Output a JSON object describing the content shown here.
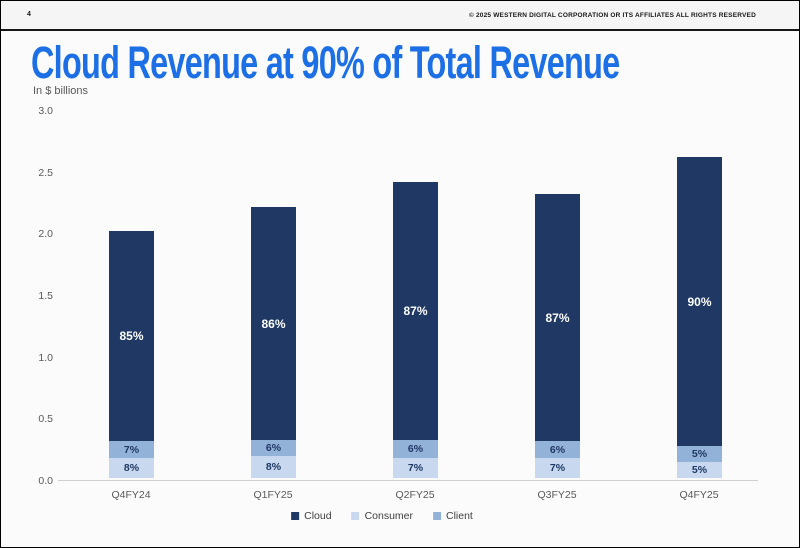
{
  "header": {
    "page_number": "4",
    "copyright": "© 2025 WESTERN DIGITAL CORPORATION OR ITS AFFILIATES  ALL RIGHTS RESERVED"
  },
  "title": "Cloud Revenue at 90% of Total Revenue",
  "subtitle": "In $ billions",
  "colors": {
    "title_blue": "#1C6FE4",
    "cloud_navy": "#1F3864",
    "client_steel": "#93B2D8",
    "consumer_light": "#C8D9EF",
    "axis_text": "#595959"
  },
  "chart_data": {
    "type": "bar",
    "stacked": true,
    "unit": "$ billions",
    "title": "Cloud Revenue at 90% of Total Revenue",
    "ylabel": "In $ billions",
    "categories": [
      "Q4FY24",
      "Q1FY25",
      "Q2FY25",
      "Q3FY25",
      "Q4FY25"
    ],
    "totals_billions": [
      2.0,
      2.2,
      2.4,
      2.3,
      2.6
    ],
    "series": [
      {
        "name": "Cloud",
        "color": "#1F3864",
        "label_color": "#FFFFFF",
        "percents": [
          85,
          86,
          87,
          87,
          90
        ],
        "labels": [
          "85%",
          "86%",
          "87%",
          "87%",
          "90%"
        ]
      },
      {
        "name": "Consumer",
        "color": "#C8D9EF",
        "label_color": "#1F3864",
        "percents": [
          8,
          8,
          7,
          7,
          5
        ],
        "labels": [
          "8%",
          "8%",
          "7%",
          "7%",
          "5%"
        ]
      },
      {
        "name": "Client",
        "color": "#93B2D8",
        "label_color": "#1F3864",
        "percents": [
          7,
          6,
          6,
          6,
          5
        ],
        "labels": [
          "7%",
          "6%",
          "6%",
          "6%",
          "5%"
        ]
      }
    ],
    "stack_order_bottom_to_top": [
      "Consumer",
      "Client",
      "Cloud"
    ],
    "ylim": [
      0,
      3.0
    ],
    "ytick_step": 0.5,
    "yticks": [
      "3.0",
      "2.5",
      "2.0",
      "1.5",
      "1.0",
      "0.5",
      "0.0"
    ],
    "grid": false,
    "legend": {
      "position": "bottom",
      "entries": [
        "Cloud",
        "Consumer",
        "Client"
      ]
    }
  }
}
